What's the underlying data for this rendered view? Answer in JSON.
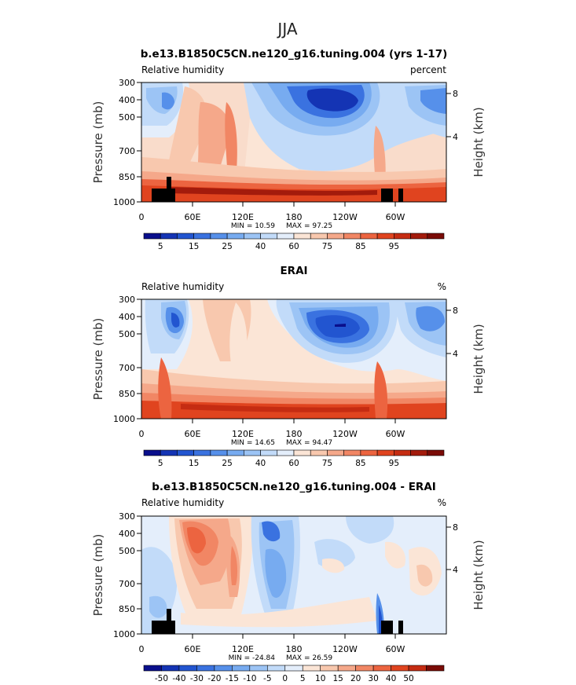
{
  "figure": {
    "season": "JJA"
  },
  "chart_data": [
    {
      "type": "heatmap",
      "title": "b.e13.B1850C5CN.ne120_g16.tuning.004 (yrs 1-17)",
      "variable": "Relative humidity",
      "units": "percent",
      "ylabel": "Pressure (mb)",
      "y2label": "Height (km)",
      "xticks": [
        "0",
        "60E",
        "120E",
        "180",
        "120W",
        "60W"
      ],
      "yticks": [
        "300",
        "400",
        "500",
        "700",
        "850",
        "1000"
      ],
      "y2ticks": [
        "8",
        "4"
      ],
      "ylim": [
        1000,
        300
      ],
      "y_scale": "log",
      "min_label": "MIN = 10.59",
      "max_label": "MAX = 97.25",
      "colorbar": {
        "labels": [
          "5",
          "15",
          "25",
          "40",
          "60",
          "75",
          "85",
          "95"
        ],
        "levels": [
          0,
          5,
          10,
          15,
          20,
          25,
          30,
          40,
          50,
          60,
          65,
          70,
          75,
          80,
          85,
          90,
          95,
          100
        ],
        "colors": [
          "#0a0f8c",
          "#1434b4",
          "#2255d0",
          "#3a72e0",
          "#5690ea",
          "#77abf0",
          "#9cc4f5",
          "#c2dbf9",
          "#e4eefb",
          "#fbe5d6",
          "#f8c8ae",
          "#f5a88a",
          "#f18664",
          "#ec6440",
          "#e0441f",
          "#c52c12",
          "#a31b0c",
          "#7a0b06"
        ]
      }
    },
    {
      "type": "heatmap",
      "title": "ERAI",
      "variable": "Relative humidity",
      "units": "%",
      "ylabel": "Pressure (mb)",
      "y2label": "Height (km)",
      "xticks": [
        "0",
        "60E",
        "120E",
        "180",
        "120W",
        "60W"
      ],
      "yticks": [
        "300",
        "400",
        "500",
        "700",
        "850",
        "1000"
      ],
      "y2ticks": [
        "8",
        "4"
      ],
      "ylim": [
        1000,
        300
      ],
      "y_scale": "log",
      "min_label": "MIN = 14.65",
      "max_label": "MAX = 94.47",
      "colorbar": {
        "labels": [
          "5",
          "15",
          "25",
          "40",
          "60",
          "75",
          "85",
          "95"
        ],
        "levels": [
          0,
          5,
          10,
          15,
          20,
          25,
          30,
          40,
          50,
          60,
          65,
          70,
          75,
          80,
          85,
          90,
          95,
          100
        ],
        "colors": [
          "#0a0f8c",
          "#1434b4",
          "#2255d0",
          "#3a72e0",
          "#5690ea",
          "#77abf0",
          "#9cc4f5",
          "#c2dbf9",
          "#e4eefb",
          "#fbe5d6",
          "#f8c8ae",
          "#f5a88a",
          "#f18664",
          "#ec6440",
          "#e0441f",
          "#c52c12",
          "#a31b0c",
          "#7a0b06"
        ]
      }
    },
    {
      "type": "heatmap",
      "title": "b.e13.B1850C5CN.ne120_g16.tuning.004 - ERAI",
      "variable": "Relative humidity",
      "units": "%",
      "ylabel": "Pressure (mb)",
      "y2label": "Height (km)",
      "xticks": [
        "0",
        "60E",
        "120E",
        "180",
        "120W",
        "60W"
      ],
      "yticks": [
        "300",
        "400",
        "500",
        "700",
        "850",
        "1000"
      ],
      "y2ticks": [
        "8",
        "4"
      ],
      "ylim": [
        1000,
        300
      ],
      "y_scale": "log",
      "min_label": "MIN = -24.84",
      "max_label": "MAX = 26.59",
      "colorbar": {
        "labels": [
          "-50",
          "-40",
          "-30",
          "-20",
          "-15",
          "-10",
          "-5",
          "0",
          "5",
          "10",
          "15",
          "20",
          "30",
          "40",
          "50"
        ],
        "colors": [
          "#0a0f8c",
          "#1434b4",
          "#2255d0",
          "#3a72e0",
          "#5690ea",
          "#77abf0",
          "#9cc4f5",
          "#c2dbf9",
          "#e4eefb",
          "#fbe5d6",
          "#f8c8ae",
          "#f5a88a",
          "#f18664",
          "#ec6440",
          "#e0441f",
          "#c52c12",
          "#7a0b06"
        ]
      }
    }
  ]
}
